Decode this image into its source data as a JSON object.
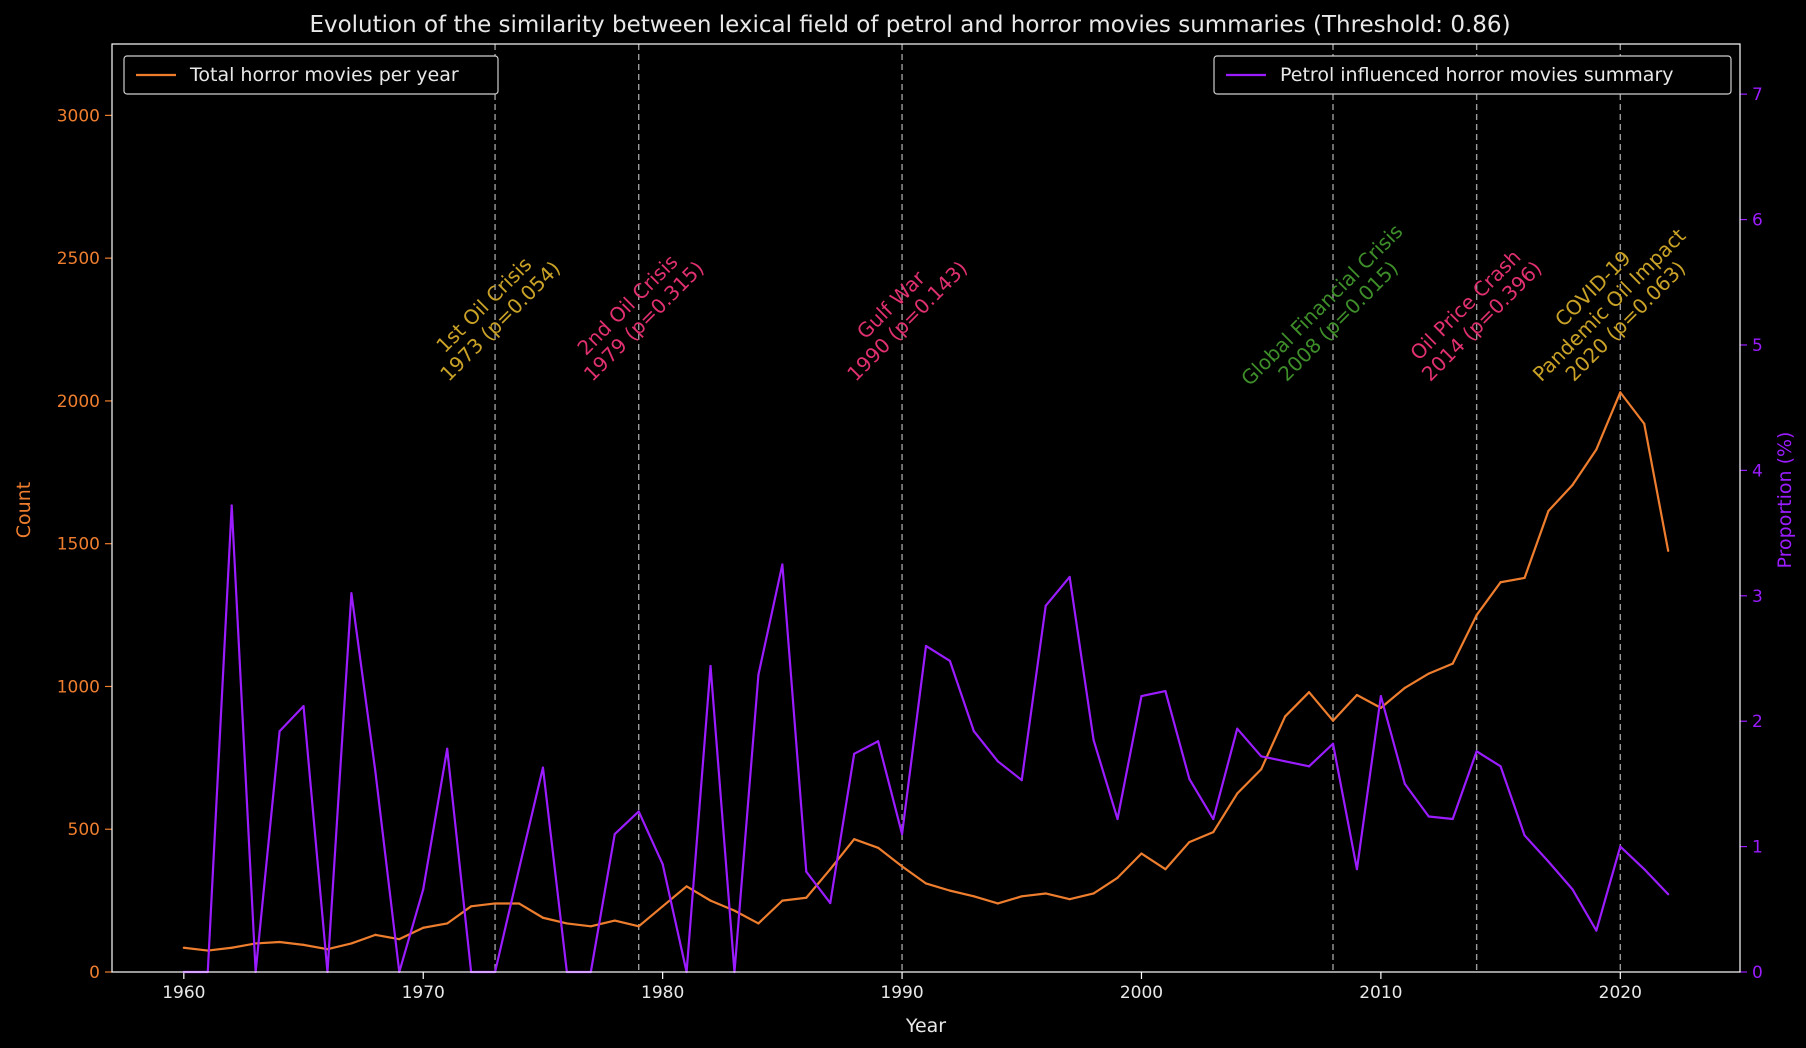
{
  "chart_data": {
    "type": "line",
    "title": "Evolution of the similarity between lexical field of petrol and horror movies summaries (Threshold: 0.86)",
    "xlabel": "Year",
    "ylabel_left": "Count",
    "ylabel_right": "Proportion (%)",
    "xlim": [
      1957,
      2025
    ],
    "ylim_left": [
      0,
      3250
    ],
    "ylim_right": [
      0,
      7.4
    ],
    "x_ticks": [
      1960,
      1970,
      1980,
      1990,
      2000,
      2010,
      2020
    ],
    "y_ticks_left": [
      0,
      500,
      1000,
      1500,
      2000,
      2500,
      3000
    ],
    "y_ticks_right": [
      0,
      1,
      2,
      3,
      4,
      5,
      6,
      7
    ],
    "grid": false,
    "legend_left": {
      "position": "upper-left",
      "label": "Total horror movies per year"
    },
    "legend_right": {
      "position": "upper-right",
      "label": "Petrol influenced horror movies summary"
    },
    "x": [
      1960,
      1961,
      1962,
      1963,
      1964,
      1965,
      1966,
      1967,
      1968,
      1969,
      1970,
      1971,
      1972,
      1973,
      1974,
      1975,
      1976,
      1977,
      1978,
      1979,
      1980,
      1981,
      1982,
      1983,
      1984,
      1985,
      1986,
      1987,
      1988,
      1989,
      1990,
      1991,
      1992,
      1993,
      1994,
      1995,
      1996,
      1997,
      1998,
      1999,
      2000,
      2001,
      2002,
      2003,
      2004,
      2005,
      2006,
      2007,
      2008,
      2009,
      2010,
      2011,
      2012,
      2013,
      2014,
      2015,
      2016,
      2017,
      2018,
      2019,
      2020,
      2021,
      2022
    ],
    "series": [
      {
        "name": "Total horror movies per year",
        "axis": "left",
        "color": "#ee7e2e",
        "values": [
          85,
          75,
          85,
          100,
          105,
          95,
          80,
          100,
          130,
          115,
          155,
          170,
          230,
          240,
          240,
          190,
          170,
          160,
          180,
          160,
          230,
          300,
          250,
          215,
          170,
          250,
          260,
          360,
          465,
          435,
          370,
          310,
          285,
          265,
          240,
          265,
          275,
          255,
          275,
          330,
          415,
          360,
          455,
          490,
          625,
          710,
          895,
          980,
          880,
          970,
          925,
          995,
          1045,
          1080,
          1250,
          1365,
          1380,
          1615,
          1705,
          1830,
          2030,
          1920,
          1475
        ]
      },
      {
        "name": "Petrol influenced horror movies summary",
        "axis": "right",
        "color": "#9b1cff",
        "values": [
          0,
          0,
          3.72,
          0,
          1.92,
          2.12,
          0,
          3.02,
          1.6,
          0,
          0.66,
          1.78,
          0,
          0,
          0.82,
          1.63,
          0,
          0,
          1.1,
          1.28,
          0.86,
          0,
          2.44,
          0,
          2.37,
          3.25,
          0.8,
          0.55,
          1.74,
          1.84,
          1.1,
          2.6,
          2.48,
          1.92,
          1.68,
          1.53,
          2.92,
          3.15,
          1.85,
          1.22,
          2.2,
          2.24,
          1.54,
          1.22,
          1.94,
          1.72,
          1.68,
          1.64,
          1.82,
          0.82,
          2.2,
          1.5,
          1.24,
          1.22,
          1.76,
          1.64,
          1.09,
          0.88,
          0.66,
          0.33,
          1.0,
          0.82,
          0.62
        ]
      }
    ],
    "events": [
      {
        "year": 1973,
        "line1": "1st Oil Crisis",
        "line2": "1973 (p=0.054)",
        "color": "#c9a227"
      },
      {
        "year": 1979,
        "line1": "2nd Oil Crisis",
        "line2": "1979 (p=0.315)",
        "color": "#e0306f"
      },
      {
        "year": 1990,
        "line1": "Gulf War",
        "line2": "1990 (p=0.143)",
        "color": "#e0306f"
      },
      {
        "year": 2008,
        "line1": "Global Financial Crisis",
        "line2": "2008 (p=0.015)",
        "color": "#3e8e2a"
      },
      {
        "year": 2014,
        "line1": "Oil Price Crash",
        "line2": "2014 (p=0.396)",
        "color": "#e0306f"
      },
      {
        "year": 2020,
        "line0": "COVID-19",
        "line1": "Pandemic Oil Impact",
        "line2": "2020 (p=0.063)",
        "color": "#c9a227"
      }
    ]
  },
  "colors": {
    "background": "#000000",
    "axes": "#ffffff",
    "text": "#e8e8e8",
    "left_axis": "#ee7e2e",
    "right_axis": "#9b1cff",
    "event_line": "#9a9a9a"
  }
}
